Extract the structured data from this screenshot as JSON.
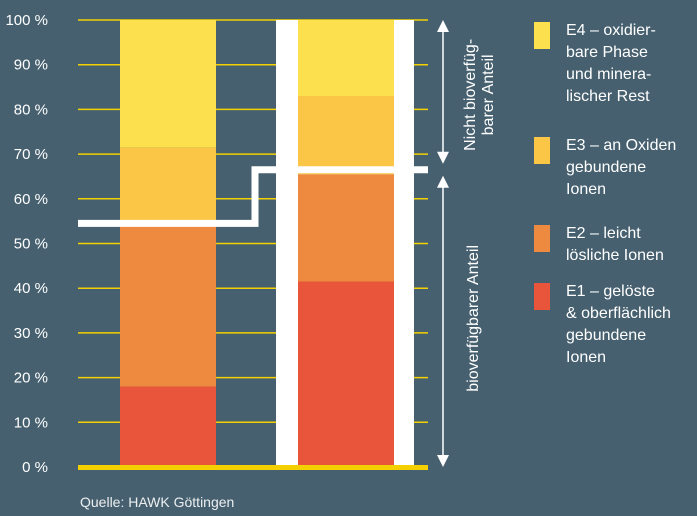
{
  "chart_data": {
    "type": "bar",
    "stacked": true,
    "categories": [
      "",
      ""
    ],
    "ylim": [
      0,
      100
    ],
    "y_ticks": [
      "0 %",
      "10 %",
      "20 %",
      "30 %",
      "40 %",
      "50 %",
      "60 %",
      "70 %",
      "80 %",
      "90 %",
      "100 %"
    ],
    "series": [
      {
        "name": "E1 – gelöste & oberflächlich gebundene Ionen",
        "lines": [
          "E1 – gelöste",
          "& oberflächlich",
          "gebundene",
          "Ionen"
        ],
        "color": "#e8553a",
        "values": [
          18,
          41.5
        ]
      },
      {
        "name": "E2 – leicht lösliche Ionen",
        "lines": [
          "E2 – leicht",
          "lösliche Ionen"
        ],
        "color": "#ee8a40",
        "values": [
          36,
          24
        ]
      },
      {
        "name": "E3 – an Oxiden gebundene Ionen",
        "lines": [
          "E3 – an Oxiden",
          "gebundene",
          "Ionen"
        ],
        "color": "#fbc645",
        "values": [
          17.5,
          17.5
        ]
      },
      {
        "name": "E4 – oxidierbare Phase und mineralischer Rest",
        "lines": [
          "E4 – oxidier-",
          "bare Phase",
          "und minera-",
          "lischer Rest"
        ],
        "color": "#fde04d",
        "values": [
          28.5,
          17
        ]
      }
    ],
    "bioavailable_threshold": [
      54.5,
      66.5
    ],
    "annotations": {
      "non_bioavailable": [
        "Nicht bioverfüg-",
        "barer Anteil"
      ],
      "bioavailable": "bioverfügbarer Anteil"
    },
    "source": "Quelle: HAWK Göttingen",
    "legend_position": "right",
    "grid": true,
    "colors": {
      "background": "#46606f",
      "gridline": "#f4d000",
      "baseline": "#f4d000",
      "threshold": "#ffffff"
    }
  }
}
